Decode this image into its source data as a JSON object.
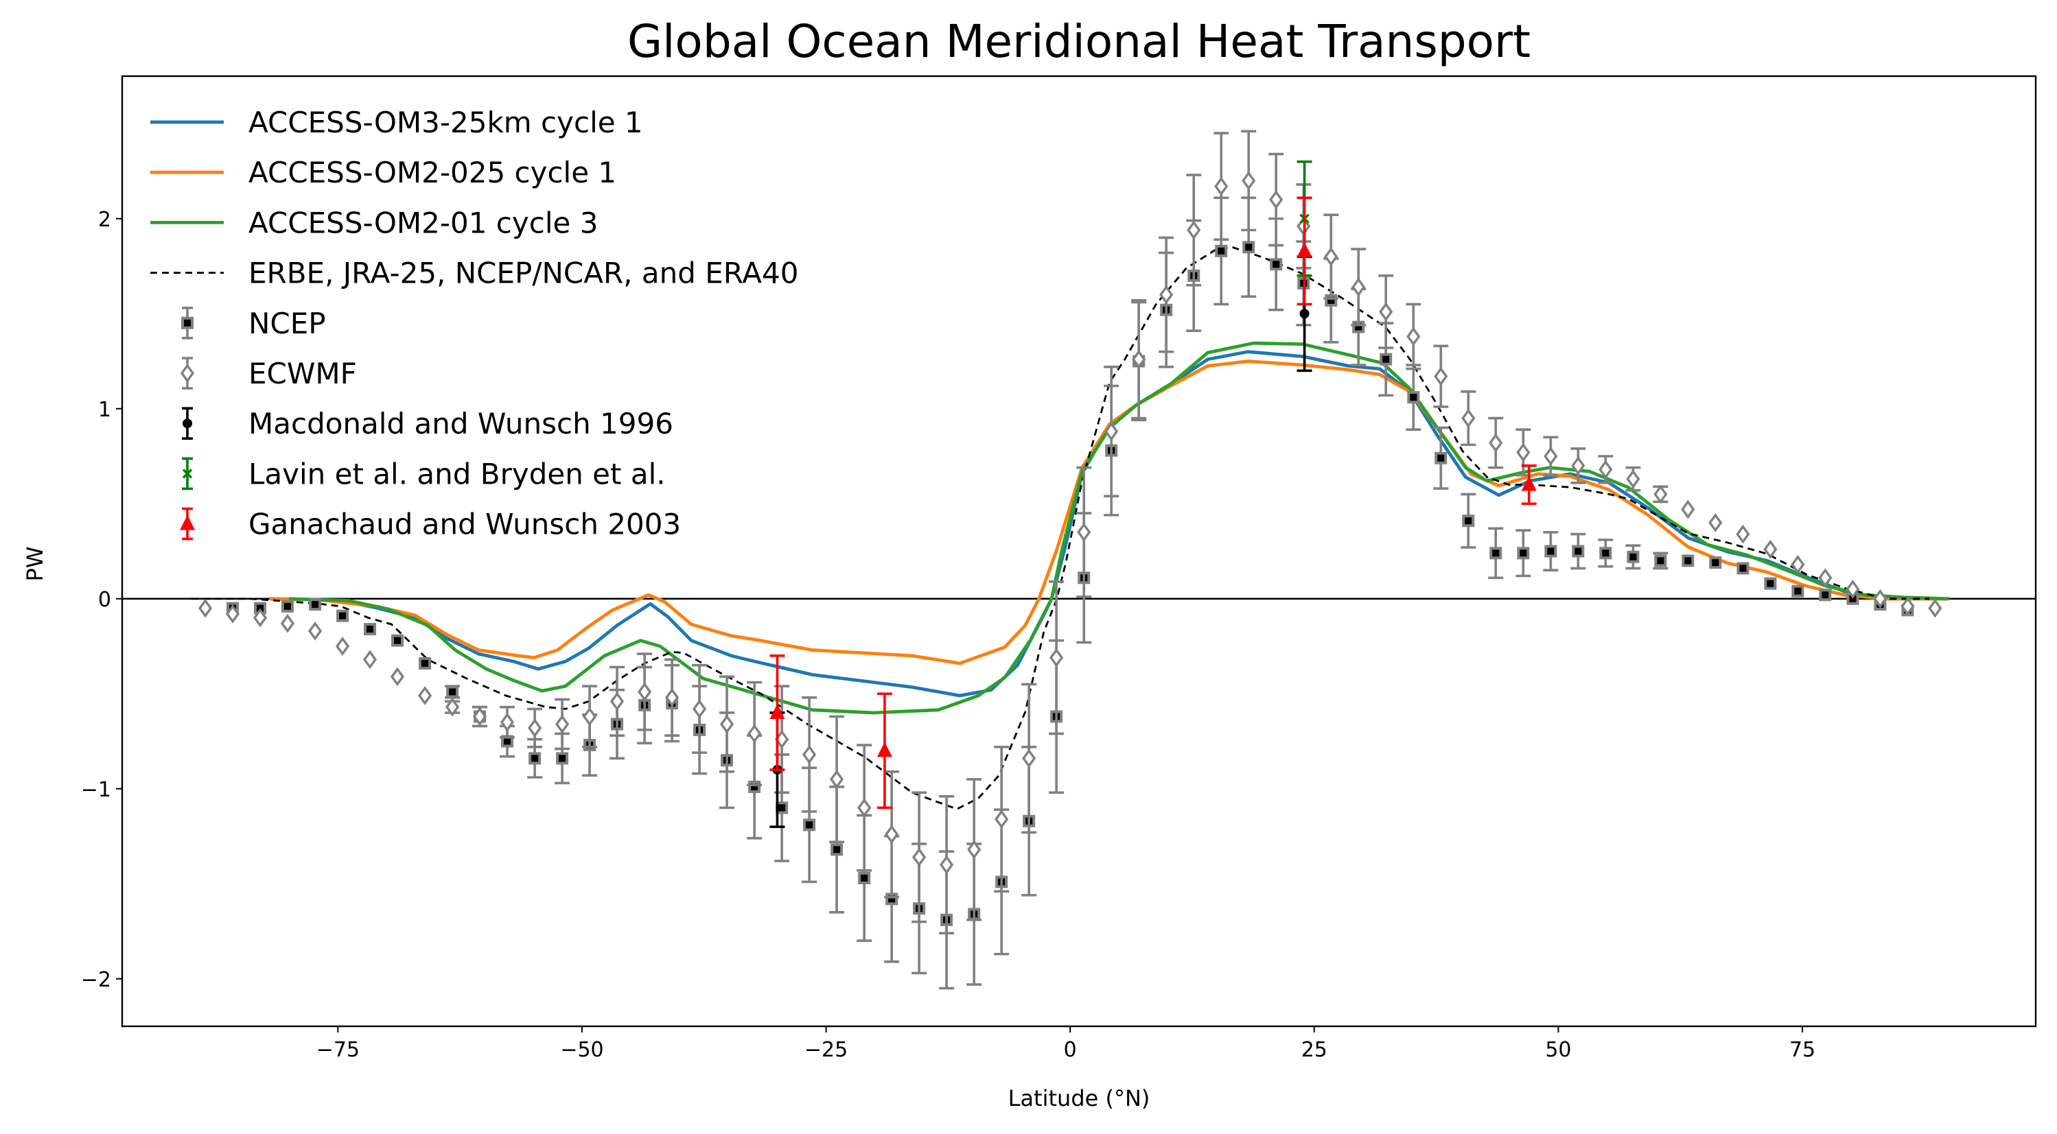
{
  "chart_data": {
    "type": "line",
    "title": "Global Ocean Meridional Heat Transport",
    "xlabel": "Latitude (°N)",
    "ylabel": "PW",
    "xlim": [
      -97.1,
      98.9
    ],
    "ylim": [
      -2.25,
      2.75
    ],
    "xticks": [
      -75,
      -50,
      -25,
      0,
      25,
      50,
      75
    ],
    "xtick_labels": [
      "−75",
      "−50",
      "−25",
      "0",
      "25",
      "50",
      "75"
    ],
    "yticks": [
      -2,
      -1,
      0,
      1,
      2
    ],
    "ytick_labels": [
      "−2",
      "−1",
      "0",
      "1",
      "2"
    ],
    "grid": false,
    "zero_line": true,
    "legend_position": "upper-left",
    "series": [
      {
        "name": "ACCESS-OM3-25km cycle 1",
        "kind": "line",
        "color": "#1f77b4",
        "x": [
          -82,
          -77,
          -73.9,
          -71.1,
          -67.1,
          -63.8,
          -60.6,
          -57,
          -54.5,
          -51.7,
          -49.3,
          -46.4,
          -43,
          -41.2,
          -38.8,
          -34.7,
          -32.3,
          -26.4,
          -16.2,
          -11.3,
          -8.1,
          -5.4,
          -2.7,
          -1.9,
          -0.56,
          1.22,
          4.05,
          6.8,
          10.3,
          14.1,
          18.2,
          23.8,
          28.5,
          31.7,
          34.8,
          37.6,
          40.5,
          43.9,
          47.1,
          51.2,
          55.2,
          59.2,
          63.3,
          67.3,
          71.4,
          75.4,
          79.4,
          83.5,
          90
        ],
        "y": [
          0,
          -0.005,
          -0.02,
          -0.047,
          -0.1,
          -0.21,
          -0.29,
          -0.33,
          -0.37,
          -0.33,
          -0.26,
          -0.14,
          -0.027,
          -0.095,
          -0.22,
          -0.3,
          -0.33,
          -0.4,
          -0.465,
          -0.51,
          -0.48,
          -0.35,
          -0.085,
          0,
          0.26,
          0.66,
          0.91,
          1.02,
          1.13,
          1.26,
          1.3,
          1.275,
          1.225,
          1.21,
          1.09,
          0.86,
          0.64,
          0.545,
          0.62,
          0.657,
          0.61,
          0.477,
          0.32,
          0.248,
          0.2,
          0.115,
          0.037,
          0,
          0
        ]
      },
      {
        "name": "ACCESS-OM2-025 cycle 1",
        "kind": "line",
        "color": "#ff7f0e",
        "x": [
          -82,
          -77,
          -71.1,
          -67.1,
          -63.8,
          -60.6,
          -56.5,
          -54.9,
          -52.5,
          -49.7,
          -46.9,
          -43.2,
          -41.6,
          -38.8,
          -34.7,
          -32.3,
          -26.4,
          -16.2,
          -11.3,
          -6.7,
          -4.6,
          -3.2,
          -1.36,
          1.22,
          4.05,
          6.8,
          10.3,
          14.1,
          18.2,
          23.8,
          28.5,
          31.7,
          34.8,
          37.6,
          41.1,
          43.9,
          47.9,
          51.2,
          55.2,
          59.2,
          63.3,
          67.3,
          71.4,
          75.4,
          79.4,
          83.5,
          90
        ],
        "y": [
          0,
          -0.005,
          -0.04,
          -0.087,
          -0.19,
          -0.27,
          -0.3,
          -0.31,
          -0.27,
          -0.16,
          -0.06,
          0.02,
          -0.014,
          -0.135,
          -0.195,
          -0.215,
          -0.27,
          -0.3,
          -0.34,
          -0.255,
          -0.14,
          0,
          0.26,
          0.69,
          0.92,
          1.02,
          1.12,
          1.225,
          1.25,
          1.23,
          1.205,
          1.18,
          1.09,
          0.9,
          0.655,
          0.595,
          0.657,
          0.645,
          0.573,
          0.44,
          0.272,
          0.188,
          0.14,
          0.067,
          0.019,
          0,
          0
        ]
      },
      {
        "name": "ACCESS-OM2-01 cycle 3",
        "kind": "line",
        "color": "#2ca02c",
        "x": [
          -80,
          -73.9,
          -69.9,
          -65.8,
          -63,
          -59.8,
          -57,
          -54.1,
          -51.7,
          -47.7,
          -44,
          -42,
          -37.6,
          -33.5,
          -28.8,
          -26.4,
          -20.2,
          -13.5,
          -9.4,
          -6.7,
          -4.1,
          -1.9,
          -0.83,
          1.22,
          4.05,
          6.8,
          10.3,
          14.1,
          18.8,
          23.8,
          29.2,
          32,
          34.8,
          37.6,
          40.5,
          42.7,
          46.4,
          49.1,
          53.2,
          57.2,
          61.3,
          65.3,
          69.3,
          73.4,
          77.4,
          81.4,
          85.4,
          90
        ],
        "y": [
          0,
          -0.01,
          -0.054,
          -0.14,
          -0.27,
          -0.37,
          -0.43,
          -0.485,
          -0.46,
          -0.3,
          -0.22,
          -0.25,
          -0.42,
          -0.48,
          -0.55,
          -0.585,
          -0.6,
          -0.585,
          -0.51,
          -0.415,
          -0.22,
          0,
          0.26,
          0.67,
          0.9,
          1.02,
          1.13,
          1.295,
          1.345,
          1.34,
          1.275,
          1.24,
          1.105,
          0.9,
          0.69,
          0.62,
          0.665,
          0.69,
          0.67,
          0.585,
          0.416,
          0.284,
          0.23,
          0.15,
          0.067,
          0.02,
          0.007,
          0
        ]
      },
      {
        "name": "ERBE, JRA-25, NCEP/NCAR, and ERA40",
        "kind": "dashed",
        "color": "#000000",
        "x": [
          -90,
          -84,
          -77.2,
          -74.7,
          -71.9,
          -69.5,
          -65.8,
          -61.8,
          -57.8,
          -53.7,
          -51.7,
          -49.3,
          -46.4,
          -43.6,
          -40.8,
          -39.6,
          -35.5,
          -31.5,
          -26.9,
          -21,
          -16.2,
          -11.6,
          -9.4,
          -7.3,
          -4.6,
          -2.7,
          -1.36,
          -0.4,
          1.22,
          4.05,
          5.6,
          8.8,
          11.9,
          15.0,
          16.6,
          19.8,
          23.8,
          27.6,
          32.3,
          34.8,
          37.6,
          40.2,
          42.7,
          44.9,
          47.1,
          51.2,
          55.2,
          57.2,
          59.2,
          63.3,
          67.3,
          71.4,
          75.4,
          79.4,
          83.5,
          88
        ],
        "y": [
          0,
          0,
          -0.025,
          -0.04,
          -0.1,
          -0.135,
          -0.32,
          -0.42,
          -0.51,
          -0.57,
          -0.58,
          -0.54,
          -0.43,
          -0.34,
          -0.28,
          -0.285,
          -0.4,
          -0.505,
          -0.66,
          -0.835,
          -1.02,
          -1.107,
          -1.05,
          -0.93,
          -0.595,
          -0.175,
          0,
          0.2,
          0.62,
          1.14,
          1.26,
          1.55,
          1.74,
          1.84,
          1.85,
          1.795,
          1.71,
          1.59,
          1.43,
          1.26,
          1.02,
          0.776,
          0.64,
          0.6,
          0.6,
          0.587,
          0.55,
          0.525,
          0.465,
          0.344,
          0.296,
          0.236,
          0.128,
          0.055,
          0,
          0
        ]
      },
      {
        "name": "NCEP",
        "kind": "errorbar-square",
        "color": "#808080",
        "x": [
          -85.78,
          -82.97,
          -80.16,
          -77.34,
          -74.53,
          -71.72,
          -68.91,
          -66.09,
          -63.28,
          -60.47,
          -57.66,
          -54.84,
          -52.03,
          -49.22,
          -46.41,
          -43.59,
          -40.78,
          -37.97,
          -35.16,
          -32.34,
          -29.53,
          -26.72,
          -23.91,
          -21.09,
          -18.28,
          -15.47,
          -12.66,
          -9.84,
          -7.03,
          -4.22,
          -1.41,
          1.41,
          4.22,
          7.03,
          9.84,
          12.66,
          15.47,
          18.28,
          21.09,
          23.91,
          26.72,
          29.53,
          32.34,
          35.16,
          37.97,
          40.78,
          43.59,
          46.41,
          49.22,
          52.03,
          54.84,
          57.66,
          60.47,
          63.28,
          66.09,
          68.91,
          71.72,
          74.53,
          77.34,
          80.16,
          82.97,
          85.78
        ],
        "y": [
          -0.05,
          -0.05,
          -0.04,
          -0.03,
          -0.09,
          -0.16,
          -0.22,
          -0.34,
          -0.49,
          -0.62,
          -0.75,
          -0.84,
          -0.84,
          -0.77,
          -0.66,
          -0.56,
          -0.55,
          -0.69,
          -0.85,
          -0.99,
          -1.1,
          -1.19,
          -1.32,
          -1.47,
          -1.58,
          -1.63,
          -1.69,
          -1.66,
          -1.49,
          -1.17,
          -0.62,
          0.11,
          0.78,
          1.25,
          1.52,
          1.7,
          1.83,
          1.85,
          1.76,
          1.66,
          1.57,
          1.43,
          1.26,
          1.06,
          0.74,
          0.41,
          0.24,
          0.24,
          0.25,
          0.25,
          0.24,
          0.22,
          0.2,
          0.2,
          0.19,
          0.16,
          0.08,
          0.04,
          0.02,
          0.0,
          -0.03,
          -0.06
        ],
        "err": [
          0,
          0,
          0,
          0,
          0,
          0,
          0,
          0,
          0.03,
          0.05,
          0.08,
          0.1,
          0.13,
          0.16,
          0.18,
          0.2,
          0.2,
          0.23,
          0.25,
          0.27,
          0.28,
          0.3,
          0.33,
          0.33,
          0.33,
          0.34,
          0.36,
          0.37,
          0.38,
          0.39,
          0.4,
          0.34,
          0.34,
          0.31,
          0.3,
          0.29,
          0.28,
          0.26,
          0.24,
          0.22,
          0.22,
          0.2,
          0.19,
          0.17,
          0.16,
          0.14,
          0.13,
          0.12,
          0.1,
          0.09,
          0.07,
          0.06,
          0.04,
          0,
          0,
          0,
          0,
          0,
          0,
          0,
          0,
          0
        ]
      },
      {
        "name": "ECWMF",
        "kind": "errorbar-diamond",
        "color": "#808080",
        "x": [
          -88.59,
          -85.78,
          -82.97,
          -80.16,
          -77.34,
          -74.53,
          -71.72,
          -68.91,
          -66.09,
          -63.28,
          -60.47,
          -57.66,
          -54.84,
          -52.03,
          -49.22,
          -46.41,
          -43.59,
          -40.78,
          -37.97,
          -35.16,
          -32.34,
          -29.53,
          -26.72,
          -23.91,
          -21.09,
          -18.28,
          -15.47,
          -12.66,
          -9.84,
          -7.03,
          -4.22,
          -1.41,
          1.41,
          4.22,
          7.03,
          9.84,
          12.66,
          15.47,
          18.28,
          21.09,
          23.91,
          26.72,
          29.53,
          32.34,
          35.16,
          37.97,
          40.78,
          43.59,
          46.41,
          49.22,
          52.03,
          54.84,
          57.66,
          60.47,
          63.28,
          66.09,
          68.91,
          71.72,
          74.53,
          77.34,
          80.16,
          82.97,
          85.78,
          88.59
        ],
        "y": [
          -0.05,
          -0.08,
          -0.1,
          -0.13,
          -0.17,
          -0.25,
          -0.32,
          -0.41,
          -0.51,
          -0.57,
          -0.62,
          -0.65,
          -0.68,
          -0.66,
          -0.62,
          -0.54,
          -0.49,
          -0.52,
          -0.58,
          -0.66,
          -0.71,
          -0.74,
          -0.82,
          -0.95,
          -1.1,
          -1.24,
          -1.36,
          -1.4,
          -1.32,
          -1.16,
          -0.84,
          -0.31,
          0.35,
          0.88,
          1.26,
          1.6,
          1.94,
          2.17,
          2.2,
          2.1,
          1.96,
          1.8,
          1.64,
          1.51,
          1.38,
          1.17,
          0.95,
          0.82,
          0.77,
          0.75,
          0.7,
          0.68,
          0.63,
          0.55,
          0.47,
          0.4,
          0.34,
          0.26,
          0.18,
          0.11,
          0.05,
          0.0,
          -0.04,
          -0.05
        ],
        "err": [
          0,
          0,
          0,
          0,
          0,
          0,
          0,
          0,
          0,
          0.03,
          0.05,
          0.08,
          0.1,
          0.13,
          0.16,
          0.18,
          0.2,
          0.2,
          0.23,
          0.25,
          0.27,
          0.28,
          0.3,
          0.33,
          0.33,
          0.33,
          0.34,
          0.36,
          0.37,
          0.38,
          0.39,
          0.4,
          0.34,
          0.34,
          0.31,
          0.3,
          0.29,
          0.28,
          0.26,
          0.24,
          0.22,
          0.22,
          0.2,
          0.19,
          0.17,
          0.16,
          0.14,
          0.13,
          0.12,
          0.1,
          0.09,
          0.07,
          0.06,
          0.04,
          0,
          0,
          0,
          0,
          0,
          0,
          0,
          0,
          0,
          0
        ]
      },
      {
        "name": "Macdonald and Wunsch 1996",
        "kind": "errorbar-circle",
        "color": "#000000",
        "x": [
          -30,
          24
        ],
        "y": [
          -0.9,
          1.5
        ],
        "err": [
          0.3,
          0.3
        ]
      },
      {
        "name": "Lavin et al. and Bryden et al.",
        "kind": "errorbar-x",
        "color": "#008000",
        "x": [
          24
        ],
        "y": [
          2.0
        ],
        "err": [
          0.3
        ]
      },
      {
        "name": "Ganachaud and Wunsch 2003",
        "kind": "errorbar-triangle",
        "color": "#ff0000",
        "x": [
          -30,
          -19,
          24,
          47
        ],
        "y": [
          -0.6,
          -0.8,
          1.83,
          0.6
        ],
        "err": [
          0.3,
          0.3,
          0.28,
          0.1
        ]
      }
    ]
  }
}
